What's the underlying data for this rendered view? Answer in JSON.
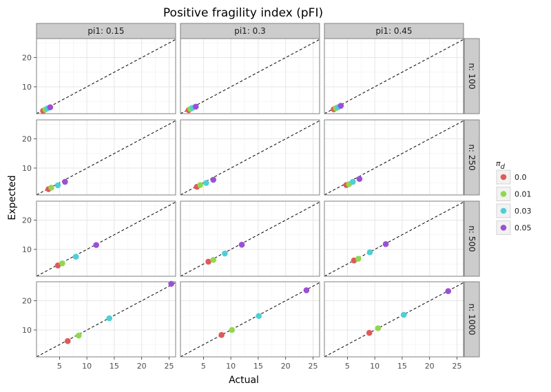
{
  "chart_data": {
    "type": "scatter",
    "title": "Positive fragility index (pFI)",
    "xlabel": "Actual",
    "ylabel": "Expected",
    "xlim": [
      0.8,
      26.2
    ],
    "ylim": [
      0.8,
      26.5
    ],
    "x_ticks": [
      5,
      10,
      15,
      20,
      25
    ],
    "y_ticks": [
      10,
      20
    ],
    "reference_line": "y = x (dashed)",
    "grid": true,
    "legend_position": "right",
    "col_facets": [
      "pi1: 0.15",
      "pi1: 0.3",
      "pi1: 0.45"
    ],
    "row_facets": [
      "n: 100",
      "n: 250",
      "n: 500",
      "n: 1000"
    ],
    "legend": {
      "title": "π_d",
      "title_main": "π",
      "title_sub": "d",
      "entries": [
        {
          "label": "0.0",
          "color": "#e05a5a"
        },
        {
          "label": "0.01",
          "color": "#90d84e"
        },
        {
          "label": "0.03",
          "color": "#4dcfd8"
        },
        {
          "label": "0.05",
          "color": "#9b4fd6"
        }
      ]
    },
    "panels": [
      {
        "row": 0,
        "col": 0,
        "points": [
          [
            2.0,
            1.8
          ],
          [
            2.4,
            2.2
          ],
          [
            2.8,
            2.6
          ],
          [
            3.3,
            3.0
          ]
        ]
      },
      {
        "row": 0,
        "col": 1,
        "points": [
          [
            2.3,
            2.0
          ],
          [
            2.6,
            2.4
          ],
          [
            3.0,
            2.8
          ],
          [
            3.6,
            3.2
          ]
        ]
      },
      {
        "row": 0,
        "col": 2,
        "points": [
          [
            2.5,
            2.3
          ],
          [
            2.9,
            2.7
          ],
          [
            3.3,
            3.0
          ],
          [
            3.8,
            3.5
          ]
        ]
      },
      {
        "row": 1,
        "col": 0,
        "points": [
          [
            3.0,
            2.8
          ],
          [
            3.5,
            3.3
          ],
          [
            4.7,
            4.1
          ],
          [
            6.0,
            5.3
          ]
        ]
      },
      {
        "row": 1,
        "col": 1,
        "points": [
          [
            3.8,
            3.6
          ],
          [
            4.4,
            4.2
          ],
          [
            5.5,
            4.9
          ],
          [
            6.8,
            6.0
          ]
        ]
      },
      {
        "row": 1,
        "col": 2,
        "points": [
          [
            4.8,
            4.2
          ],
          [
            5.3,
            4.5
          ],
          [
            6.0,
            5.3
          ],
          [
            7.2,
            6.3
          ]
        ]
      },
      {
        "row": 2,
        "col": 0,
        "points": [
          [
            4.7,
            4.5
          ],
          [
            5.5,
            5.2
          ],
          [
            8.0,
            7.5
          ],
          [
            11.7,
            11.5
          ]
        ]
      },
      {
        "row": 2,
        "col": 1,
        "points": [
          [
            5.9,
            5.8
          ],
          [
            6.8,
            6.4
          ],
          [
            8.9,
            8.6
          ],
          [
            12.0,
            11.6
          ]
        ]
      },
      {
        "row": 2,
        "col": 2,
        "points": [
          [
            6.2,
            6.2
          ],
          [
            7.0,
            6.8
          ],
          [
            9.1,
            9.0
          ],
          [
            12.0,
            11.8
          ]
        ]
      },
      {
        "row": 3,
        "col": 0,
        "points": [
          [
            6.5,
            6.2
          ],
          [
            8.5,
            8.1
          ],
          [
            14.1,
            14.0
          ],
          [
            25.4,
            25.8
          ]
        ]
      },
      {
        "row": 3,
        "col": 1,
        "points": [
          [
            8.3,
            8.3
          ],
          [
            10.2,
            10.0
          ],
          [
            15.1,
            14.8
          ],
          [
            23.8,
            23.6
          ]
        ]
      },
      {
        "row": 3,
        "col": 2,
        "points": [
          [
            9.0,
            9.0
          ],
          [
            10.6,
            10.6
          ],
          [
            15.3,
            15.2
          ],
          [
            23.4,
            23.3
          ]
        ]
      }
    ]
  }
}
